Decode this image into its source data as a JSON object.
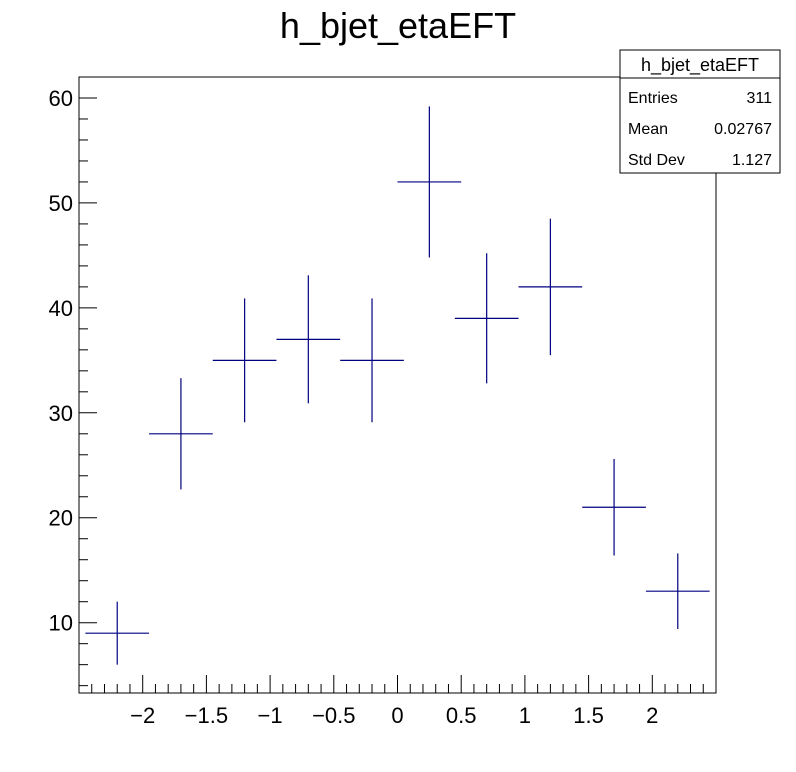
{
  "chart_data": {
    "type": "scatter",
    "title": "h_bjet_etaEFT",
    "xlabel": "",
    "ylabel": "",
    "xlim": [
      -2.5,
      2.5
    ],
    "ylim": [
      3.3,
      62
    ],
    "grid": false,
    "x_ticks": [
      {
        "v": -2,
        "label": "−2"
      },
      {
        "v": -1.5,
        "label": "−1.5"
      },
      {
        "v": -1,
        "label": "−1"
      },
      {
        "v": -0.5,
        "label": "−0.5"
      },
      {
        "v": 0,
        "label": "0"
      },
      {
        "v": 0.5,
        "label": "0.5"
      },
      {
        "v": 1,
        "label": "1"
      },
      {
        "v": 1.5,
        "label": "1.5"
      },
      {
        "v": 2,
        "label": "2"
      }
    ],
    "y_ticks": [
      {
        "v": 10,
        "label": "10"
      },
      {
        "v": 20,
        "label": "20"
      },
      {
        "v": 30,
        "label": "30"
      },
      {
        "v": 40,
        "label": "40"
      },
      {
        "v": 50,
        "label": "50"
      },
      {
        "v": 60,
        "label": "60"
      }
    ],
    "series": [
      {
        "color": "#000080",
        "points": [
          {
            "x": -2.2,
            "y": 9,
            "xerr": 0.25,
            "yerr": 3.0
          },
          {
            "x": -1.7,
            "y": 28,
            "xerr": 0.25,
            "yerr": 5.3
          },
          {
            "x": -1.2,
            "y": 35,
            "xerr": 0.25,
            "yerr": 5.9
          },
          {
            "x": -0.7,
            "y": 37,
            "xerr": 0.25,
            "yerr": 6.1
          },
          {
            "x": -0.2,
            "y": 35,
            "xerr": 0.25,
            "yerr": 5.9
          },
          {
            "x": 0.25,
            "y": 52,
            "xerr": 0.25,
            "yerr": 7.2
          },
          {
            "x": 0.7,
            "y": 39,
            "xerr": 0.25,
            "yerr": 6.2
          },
          {
            "x": 1.2,
            "y": 42,
            "xerr": 0.25,
            "yerr": 6.5
          },
          {
            "x": 1.7,
            "y": 21,
            "xerr": 0.25,
            "yerr": 4.6
          },
          {
            "x": 2.2,
            "y": 13,
            "xerr": 0.25,
            "yerr": 3.6
          }
        ]
      }
    ],
    "stats_box": {
      "title": "h_bjet_etaEFT",
      "rows": [
        {
          "label": "Entries",
          "value": "311"
        },
        {
          "label": "Mean",
          "value": "0.02767"
        },
        {
          "label": "Std Dev",
          "value": "1.127"
        }
      ]
    }
  }
}
